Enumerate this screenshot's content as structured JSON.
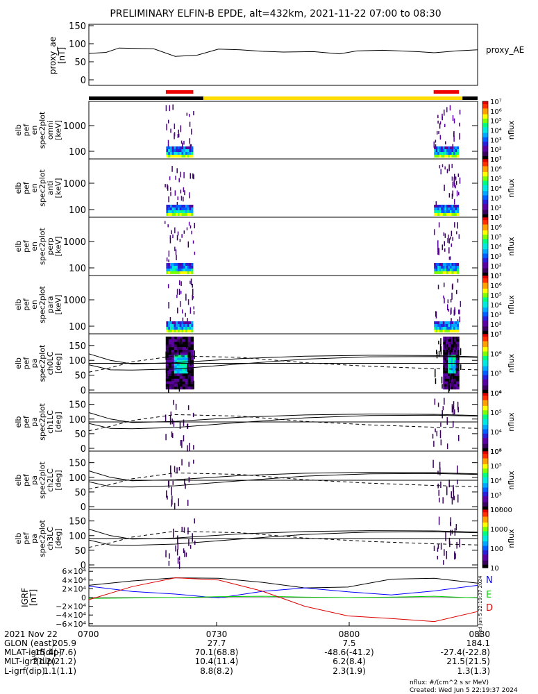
{
  "title": "PRELIMINARY ELFIN-B EPDE, alt=432km, 2021-11-22 07:00 to 08:30",
  "proxy_ae": {
    "ylabel": "proxy_ae",
    "units": "[nT]",
    "legend": "proxy_AE",
    "ticks": [
      "0",
      "50",
      "100",
      "150"
    ]
  },
  "spec_panels": [
    {
      "label": [
        "elb",
        "pef",
        "en",
        "spec2plot",
        "omni",
        "[keV]"
      ],
      "ticks": [
        "100",
        "1000"
      ],
      "cbar": [
        "10¹",
        "10²",
        "10³",
        "10⁴",
        "10⁵",
        "10⁶",
        "10⁷"
      ],
      "cbar_label": "nflux"
    },
    {
      "label": [
        "elb",
        "pef",
        "en",
        "spec2plot",
        "anti",
        "[keV]"
      ],
      "ticks": [
        "100",
        "1000"
      ],
      "cbar": [
        "10¹",
        "10²",
        "10³",
        "10⁴",
        "10⁵",
        "10⁶",
        "10⁷"
      ],
      "cbar_label": "nflux"
    },
    {
      "label": [
        "elb",
        "pef",
        "en",
        "spec2plot",
        "perp",
        "[keV]"
      ],
      "ticks": [
        "100",
        "1000"
      ],
      "cbar": [
        "10¹",
        "10²",
        "10³",
        "10⁴",
        "10⁵",
        "10⁶",
        "10⁷"
      ],
      "cbar_label": "nflux"
    },
    {
      "label": [
        "elb",
        "pef",
        "en",
        "spec2plot",
        "para",
        "[keV]"
      ],
      "ticks": [
        "100",
        "1000"
      ],
      "cbar": [
        "10¹",
        "10²",
        "10³",
        "10⁴",
        "10⁵",
        "10⁶",
        "10⁷"
      ],
      "cbar_label": "nflux"
    }
  ],
  "pa_panels": [
    {
      "label": [
        "elb",
        "pef",
        "pa",
        "spec2plot",
        "ch0LC",
        "[deg]"
      ],
      "ticks": [
        "0",
        "50",
        "100",
        "150"
      ],
      "cbar": [
        "10⁴",
        "10⁵",
        "10⁶",
        "10⁷"
      ],
      "cbar_label": "nflux"
    },
    {
      "label": [
        "elb",
        "pef",
        "pa",
        "spec2plot",
        "ch1LC",
        "[deg]"
      ],
      "ticks": [
        "0",
        "50",
        "100",
        "150"
      ],
      "cbar": [
        "10³",
        "10⁴",
        "10⁵",
        "10⁶"
      ],
      "cbar_label": "nflux"
    },
    {
      "label": [
        "elb",
        "pef",
        "pa",
        "spec2plot",
        "ch2LC",
        "[deg]"
      ],
      "ticks": [
        "0",
        "50",
        "100",
        "150"
      ],
      "cbar": [
        "10²",
        "10³",
        "10⁴",
        "10⁵",
        "10⁶"
      ],
      "cbar_label": "nflux"
    },
    {
      "label": [
        "elb",
        "pef",
        "pa",
        "spec2plot",
        "ch3LC",
        "[deg]"
      ],
      "ticks": [
        "0",
        "50",
        "100",
        "150"
      ],
      "cbar": [
        "10",
        "100",
        "1000",
        "10000"
      ],
      "cbar_label": "nflux"
    }
  ],
  "igrf": {
    "label": [
      "IGRF",
      "[nT]"
    ],
    "ticks": [
      "−6×10⁴",
      "−4×10⁴",
      "−2×10⁴",
      "0",
      "2×10⁴",
      "4×10⁴",
      "6×10⁴"
    ],
    "legend": [
      {
        "name": "N",
        "color": "#0000ff"
      },
      {
        "name": "E",
        "color": "#00cc00"
      },
      {
        "name": "D",
        "color": "#dd0000"
      }
    ],
    "side_note": "Wed Jun  5 22:19:37 2024"
  },
  "footer": {
    "rows": [
      {
        "label": "2021 Nov 22",
        "values": [
          "0700",
          "0730",
          "0800",
          "0830"
        ]
      },
      {
        "label": "GLON (east)",
        "values": [
          "205.9",
          "27.7",
          "7.5",
          "184.1"
        ]
      },
      {
        "label": "MLAT-igrf(dip)",
        "values": [
          "-15.4(-7.6)",
          "70.1(68.8)",
          "-48.6(-41.2)",
          "-27.4(-22.8)"
        ]
      },
      {
        "label": "MLT-igrf(dip)",
        "values": [
          "21.2(21.2)",
          "10.4(11.4)",
          "6.2(8.4)",
          "21.5(21.5)"
        ]
      },
      {
        "label": "L-igrf(dip)",
        "values": [
          "1.1(1.1)",
          "8.8(8.2)",
          "2.3(1.9)",
          "1.3(1.3)"
        ]
      }
    ],
    "note1": "nflux: #/(cm^2 s sr MeV)",
    "note2": "Created: Wed Jun  5 22:19:37 2024"
  },
  "chart_data": {
    "type": "line",
    "time_range": [
      "2021-11-22 07:00",
      "2021-11-22 08:30"
    ],
    "proxy_ae": {
      "t_min": [
        0,
        4,
        7,
        15,
        20,
        25,
        30,
        35,
        40,
        45,
        52,
        58,
        62,
        68,
        72,
        76,
        80,
        85,
        90
      ],
      "values": [
        73,
        76,
        88,
        86,
        65,
        68,
        85,
        83,
        79,
        77,
        78,
        72,
        80,
        82,
        80,
        78,
        75,
        80,
        83
      ]
    },
    "orbit_bar": {
      "segments": [
        {
          "from": 0,
          "to": 26.5,
          "color": "black"
        },
        {
          "from": 26.5,
          "to": 86.5,
          "color": "yellow"
        },
        {
          "from": 86.5,
          "to": 90,
          "color": "black"
        }
      ],
      "science_zones": [
        [
          17.5,
          24.5
        ],
        [
          79.5,
          86
        ]
      ]
    },
    "loss_cone_lines": {
      "t_min": [
        0,
        5,
        10,
        20,
        35,
        50,
        65,
        80,
        90
      ],
      "solid_upper": [
        122,
        100,
        88,
        92,
        106,
        114,
        117,
        116,
        112
      ],
      "solid_lower": [
        85,
        68,
        67,
        71,
        88,
        104,
        112,
        113,
        110
      ],
      "dashed": [
        60,
        75,
        95,
        115,
        110,
        92,
        80,
        72,
        68
      ],
      "horizontal": 90
    },
    "igrf": {
      "t_min": [
        0,
        10,
        20,
        30,
        40,
        50,
        60,
        70,
        80,
        90
      ],
      "total": [
        28000,
        38000,
        45000,
        44000,
        35000,
        22000,
        24000,
        42000,
        44000,
        33000
      ],
      "N": [
        26000,
        14000,
        8000,
        -1000,
        14000,
        22000,
        13000,
        6000,
        15000,
        28000
      ],
      "E": [
        -2000,
        -1000,
        0,
        2000,
        3000,
        1000,
        0,
        1000,
        3000,
        -1000
      ],
      "D": [
        -5000,
        25000,
        45000,
        40000,
        15000,
        -20000,
        -42000,
        -48000,
        -55000,
        -32000
      ]
    }
  }
}
